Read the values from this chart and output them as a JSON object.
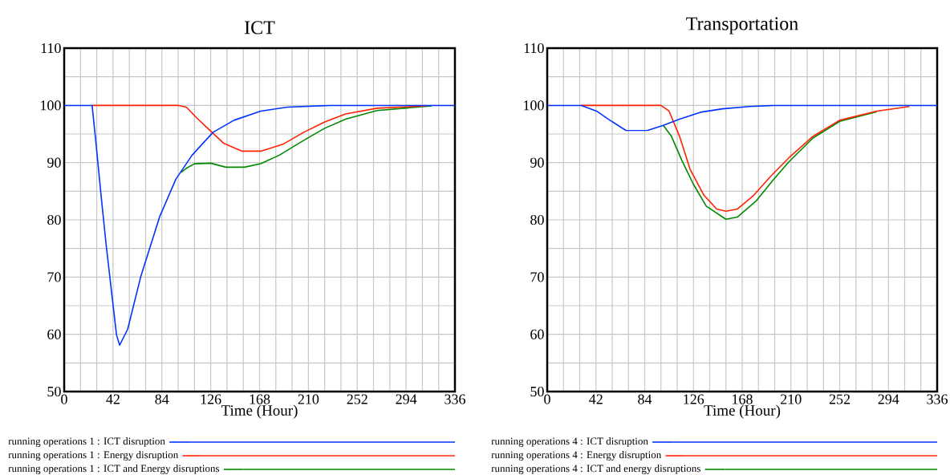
{
  "chart_data": [
    {
      "type": "line",
      "title": "ICT",
      "xlabel": "Time (Hour)",
      "xlim": [
        0,
        336
      ],
      "ylim": [
        50,
        110
      ],
      "xticks": [
        0,
        {
          "value": 14,
          "label": null
        },
        {
          "value": 28,
          "label": null
        },
        42,
        {
          "value": 56,
          "label": null
        },
        {
          "value": 70,
          "label": null
        },
        84,
        {
          "value": 98,
          "label": null
        },
        {
          "value": 112,
          "label": null
        },
        126,
        {
          "value": 140,
          "label": null
        },
        {
          "value": 154,
          "label": null
        },
        168,
        {
          "value": 182,
          "label": null
        },
        {
          "value": 196,
          "label": null
        },
        210,
        {
          "value": 224,
          "label": null
        },
        {
          "value": 238,
          "label": null
        },
        252,
        {
          "value": 266,
          "label": null
        },
        {
          "value": 280,
          "label": null
        },
        294,
        {
          "value": 308,
          "label": null
        },
        {
          "value": 322,
          "label": null
        },
        336
      ],
      "yticks": [
        50,
        {
          "value": 55,
          "label": null
        },
        60,
        {
          "value": 65,
          "label": null
        },
        70,
        {
          "value": 75,
          "label": null
        },
        80,
        {
          "value": 85,
          "label": null
        },
        90,
        {
          "value": 95,
          "label": null
        },
        100,
        {
          "value": 105,
          "label": null
        },
        110
      ],
      "grid": true,
      "legend": "bottom",
      "series": [
        {
          "name": "running operations 1 : ICT disruption",
          "color": "#0033ff",
          "x": [
            0,
            24,
            27,
            31.7,
            36,
            41,
            45,
            47.7,
            54.6,
            66,
            82,
            96,
            110,
            128,
            146,
            169,
            192,
            229,
            336
          ],
          "values": [
            100,
            100,
            94.1,
            84.3,
            75.8,
            66.9,
            59.9,
            58.1,
            60.9,
            70.2,
            80.5,
            87.1,
            91.3,
            95.3,
            97.4,
            99.0,
            99.7,
            100,
            100
          ]
        },
        {
          "name": "running operations 1 : Energy disruption",
          "color": "#ff2200",
          "x": [
            24,
            97.7,
            105,
            114,
            126,
            137,
            153,
            169,
            188,
            206,
            224,
            242,
            269,
            311
          ],
          "values": [
            100,
            100,
            99.7,
            97.8,
            95.5,
            93.4,
            92.0,
            92.0,
            93.2,
            95.3,
            97.1,
            98.5,
            99.5,
            99.9
          ]
        },
        {
          "name": "running operations 1 : ICT and Energy disruptions",
          "color": "#008800",
          "x": [
            100.5,
            105,
            112,
            126,
            139,
            155,
            169,
            185,
            206,
            224,
            242,
            269,
            316
          ],
          "values": [
            88.3,
            89.0,
            89.8,
            89.9,
            89.2,
            89.2,
            89.8,
            91.3,
            93.9,
            96.0,
            97.6,
            99.1,
            99.9
          ]
        }
      ]
    },
    {
      "type": "line",
      "title": "Transportation",
      "xlabel": "Time (Hour)",
      "xlim": [
        0,
        336
      ],
      "ylim": [
        50,
        110
      ],
      "xticks": [
        0,
        {
          "value": 14,
          "label": null
        },
        {
          "value": 28,
          "label": null
        },
        42,
        {
          "value": 56,
          "label": null
        },
        {
          "value": 70,
          "label": null
        },
        84,
        {
          "value": 98,
          "label": null
        },
        {
          "value": 112,
          "label": null
        },
        126,
        {
          "value": 140,
          "label": null
        },
        {
          "value": 154,
          "label": null
        },
        168,
        {
          "value": 182,
          "label": null
        },
        {
          "value": 196,
          "label": null
        },
        210,
        {
          "value": 224,
          "label": null
        },
        {
          "value": 238,
          "label": null
        },
        252,
        {
          "value": 266,
          "label": null
        },
        {
          "value": 280,
          "label": null
        },
        294,
        {
          "value": 308,
          "label": null
        },
        {
          "value": 322,
          "label": null
        },
        336
      ],
      "yticks": [
        50,
        {
          "value": 55,
          "label": null
        },
        60,
        {
          "value": 65,
          "label": null
        },
        70,
        {
          "value": 75,
          "label": null
        },
        80,
        {
          "value": 85,
          "label": null
        },
        90,
        {
          "value": 95,
          "label": null
        },
        100,
        {
          "value": 105,
          "label": null
        },
        110
      ],
      "grid": true,
      "legend": "bottom",
      "series": [
        {
          "name": "running operations 4 : ICT disruption",
          "color": "#0033ff",
          "x": [
            0,
            29,
            42.5,
            54,
            68,
            86,
            100,
            114,
            132,
            151,
            174,
            195,
            336
          ],
          "values": [
            100,
            100,
            99.0,
            97.4,
            95.6,
            95.6,
            96.5,
            97.6,
            98.8,
            99.4,
            99.8,
            100,
            100
          ]
        },
        {
          "name": "running operations 4 : Energy disruption",
          "color": "#ff2200",
          "x": [
            29,
            98,
            105,
            114,
            123,
            135,
            146,
            154,
            164,
            178,
            192,
            208,
            229,
            252,
            284,
            312
          ],
          "values": [
            100,
            100,
            99.0,
            94.6,
            88.9,
            84.3,
            81.9,
            81.5,
            81.9,
            84.3,
            87.5,
            90.8,
            94.6,
            97.4,
            99.0,
            99.8
          ]
        },
        {
          "name": "running operations 4 : ICT and energy disruptions",
          "color": "#008800",
          "x": [
            100,
            107,
            116,
            126,
            137,
            154,
            164,
            180,
            194,
            208,
            229,
            252,
            284
          ],
          "values": [
            96.5,
            94.6,
            90.4,
            86.2,
            82.4,
            80.1,
            80.5,
            83.3,
            86.8,
            90.1,
            94.3,
            97.2,
            98.9
          ]
        }
      ]
    }
  ]
}
